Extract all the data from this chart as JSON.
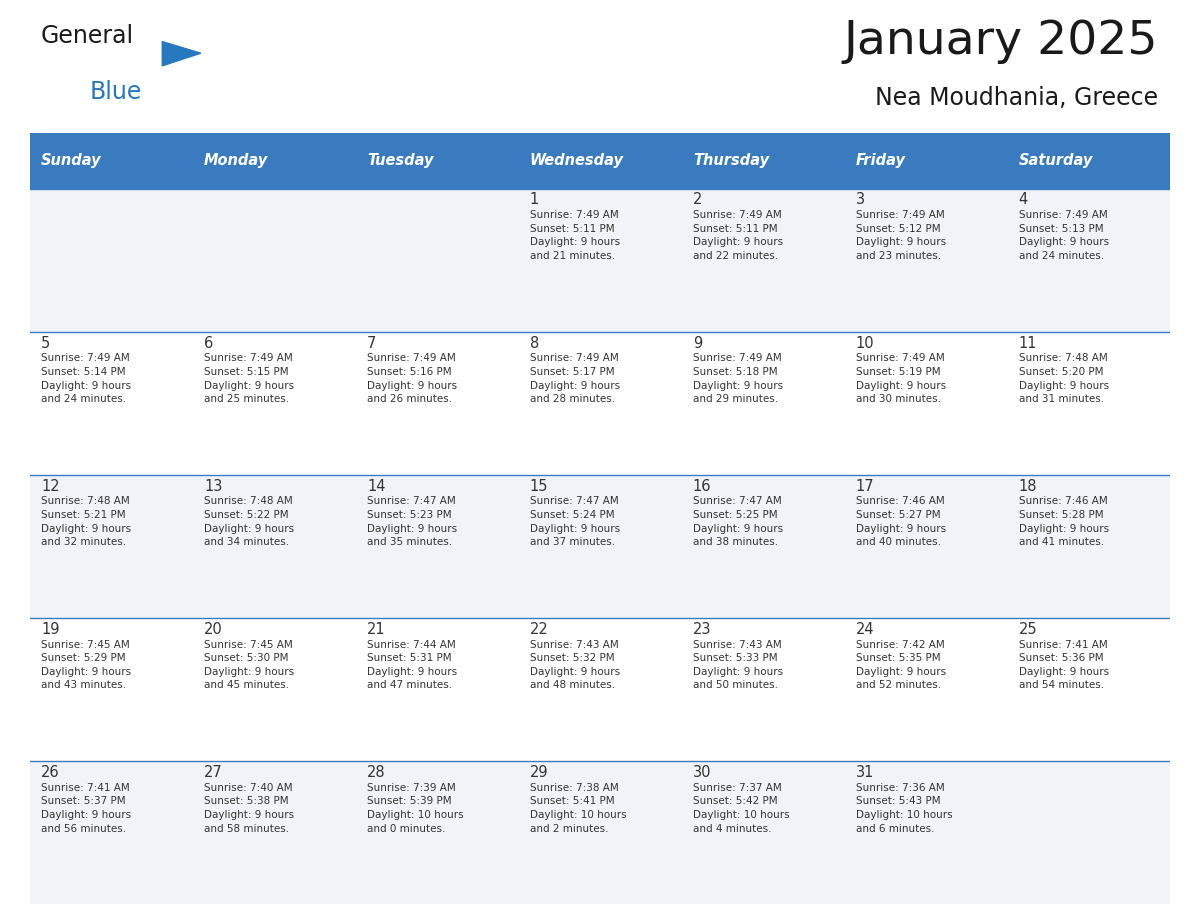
{
  "title": "January 2025",
  "subtitle": "Nea Moudhania, Greece",
  "days_of_week": [
    "Sunday",
    "Monday",
    "Tuesday",
    "Wednesday",
    "Thursday",
    "Friday",
    "Saturday"
  ],
  "header_bg": "#3a7bbf",
  "header_text": "#ffffff",
  "row_bg_light": "#f0f4f8",
  "row_bg_white": "#ffffff",
  "cell_text": "#333333",
  "day_num_color": "#333333",
  "border_color": "#3a7bbf",
  "logo_general_color": "#1a1a1a",
  "logo_blue_color": "#2678bf",
  "calendar_data": [
    [
      "",
      "",
      "",
      "1\nSunrise: 7:49 AM\nSunset: 5:11 PM\nDaylight: 9 hours\nand 21 minutes.",
      "2\nSunrise: 7:49 AM\nSunset: 5:11 PM\nDaylight: 9 hours\nand 22 minutes.",
      "3\nSunrise: 7:49 AM\nSunset: 5:12 PM\nDaylight: 9 hours\nand 23 minutes.",
      "4\nSunrise: 7:49 AM\nSunset: 5:13 PM\nDaylight: 9 hours\nand 24 minutes."
    ],
    [
      "5\nSunrise: 7:49 AM\nSunset: 5:14 PM\nDaylight: 9 hours\nand 24 minutes.",
      "6\nSunrise: 7:49 AM\nSunset: 5:15 PM\nDaylight: 9 hours\nand 25 minutes.",
      "7\nSunrise: 7:49 AM\nSunset: 5:16 PM\nDaylight: 9 hours\nand 26 minutes.",
      "8\nSunrise: 7:49 AM\nSunset: 5:17 PM\nDaylight: 9 hours\nand 28 minutes.",
      "9\nSunrise: 7:49 AM\nSunset: 5:18 PM\nDaylight: 9 hours\nand 29 minutes.",
      "10\nSunrise: 7:49 AM\nSunset: 5:19 PM\nDaylight: 9 hours\nand 30 minutes.",
      "11\nSunrise: 7:48 AM\nSunset: 5:20 PM\nDaylight: 9 hours\nand 31 minutes."
    ],
    [
      "12\nSunrise: 7:48 AM\nSunset: 5:21 PM\nDaylight: 9 hours\nand 32 minutes.",
      "13\nSunrise: 7:48 AM\nSunset: 5:22 PM\nDaylight: 9 hours\nand 34 minutes.",
      "14\nSunrise: 7:47 AM\nSunset: 5:23 PM\nDaylight: 9 hours\nand 35 minutes.",
      "15\nSunrise: 7:47 AM\nSunset: 5:24 PM\nDaylight: 9 hours\nand 37 minutes.",
      "16\nSunrise: 7:47 AM\nSunset: 5:25 PM\nDaylight: 9 hours\nand 38 minutes.",
      "17\nSunrise: 7:46 AM\nSunset: 5:27 PM\nDaylight: 9 hours\nand 40 minutes.",
      "18\nSunrise: 7:46 AM\nSunset: 5:28 PM\nDaylight: 9 hours\nand 41 minutes."
    ],
    [
      "19\nSunrise: 7:45 AM\nSunset: 5:29 PM\nDaylight: 9 hours\nand 43 minutes.",
      "20\nSunrise: 7:45 AM\nSunset: 5:30 PM\nDaylight: 9 hours\nand 45 minutes.",
      "21\nSunrise: 7:44 AM\nSunset: 5:31 PM\nDaylight: 9 hours\nand 47 minutes.",
      "22\nSunrise: 7:43 AM\nSunset: 5:32 PM\nDaylight: 9 hours\nand 48 minutes.",
      "23\nSunrise: 7:43 AM\nSunset: 5:33 PM\nDaylight: 9 hours\nand 50 minutes.",
      "24\nSunrise: 7:42 AM\nSunset: 5:35 PM\nDaylight: 9 hours\nand 52 minutes.",
      "25\nSunrise: 7:41 AM\nSunset: 5:36 PM\nDaylight: 9 hours\nand 54 minutes."
    ],
    [
      "26\nSunrise: 7:41 AM\nSunset: 5:37 PM\nDaylight: 9 hours\nand 56 minutes.",
      "27\nSunrise: 7:40 AM\nSunset: 5:38 PM\nDaylight: 9 hours\nand 58 minutes.",
      "28\nSunrise: 7:39 AM\nSunset: 5:39 PM\nDaylight: 10 hours\nand 0 minutes.",
      "29\nSunrise: 7:38 AM\nSunset: 5:41 PM\nDaylight: 10 hours\nand 2 minutes.",
      "30\nSunrise: 7:37 AM\nSunset: 5:42 PM\nDaylight: 10 hours\nand 4 minutes.",
      "31\nSunrise: 7:36 AM\nSunset: 5:43 PM\nDaylight: 10 hours\nand 6 minutes.",
      ""
    ]
  ]
}
